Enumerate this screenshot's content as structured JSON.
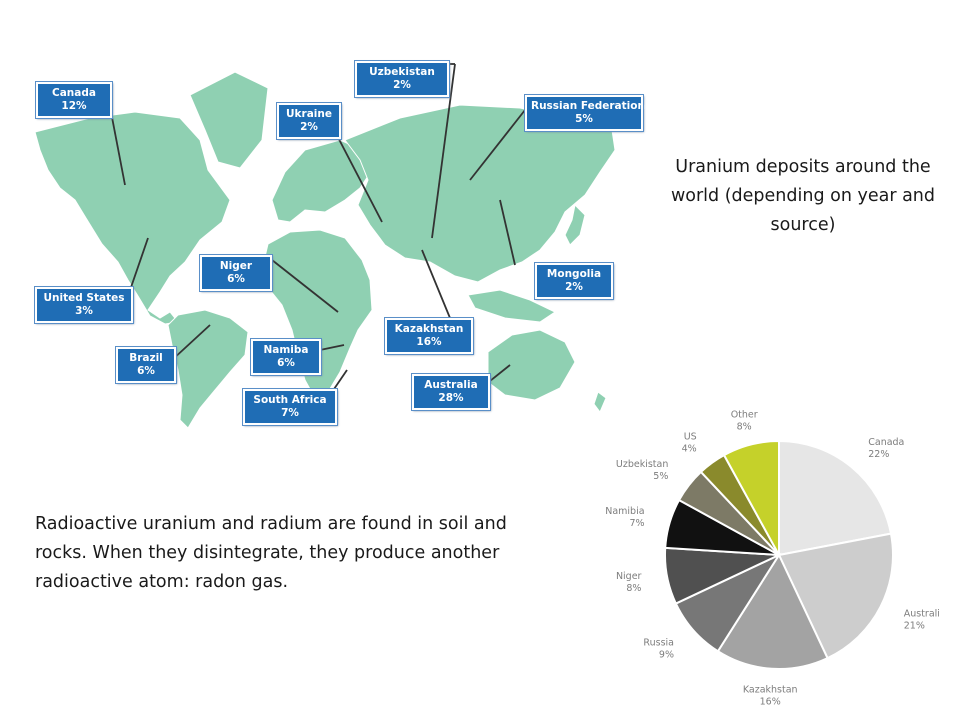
{
  "map": {
    "callouts": [
      {
        "key": "canada",
        "name": "Canada",
        "pct": "12%"
      },
      {
        "key": "united-states",
        "name": "United States",
        "pct": "3%"
      },
      {
        "key": "brazil",
        "name": "Brazil",
        "pct": "6%"
      },
      {
        "key": "ukraine",
        "name": "Ukraine",
        "pct": "2%"
      },
      {
        "key": "uzbekistan",
        "name": "Uzbekistan",
        "pct": "2%"
      },
      {
        "key": "russian-federation",
        "name": "Russian Federation",
        "pct": "5%"
      },
      {
        "key": "niger",
        "name": "Niger",
        "pct": "6%"
      },
      {
        "key": "namiba",
        "name": "Namiba",
        "pct": "6%"
      },
      {
        "key": "south-africa",
        "name": "South Africa",
        "pct": "7%"
      },
      {
        "key": "kazakhstan",
        "name": "Kazakhstan",
        "pct": "16%"
      },
      {
        "key": "mongolia",
        "name": "Mongolia",
        "pct": "2%"
      },
      {
        "key": "australia",
        "name": "Australia",
        "pct": "28%"
      }
    ],
    "colors": {
      "land": "#8fd0b2",
      "callout": "#1f6db5",
      "leader": "#333333"
    }
  },
  "caption": "Uranium deposits around the world (depending on year and source)",
  "body_text": "Radioactive uranium and radium are found in soil and rocks. When they disintegrate, they produce another radioactive atom: radon gas.",
  "chart_data": {
    "type": "pie",
    "title": "",
    "start": "12 o'clock",
    "direction": "clockwise",
    "slices": [
      {
        "label": "Canada",
        "value_label": "22%",
        "value": 22,
        "color": "#e6e6e6"
      },
      {
        "label": "Australia",
        "value_label": "21%",
        "value": 21,
        "color": "#cdcdcd"
      },
      {
        "label": "Kazakhstan",
        "value_label": "16%",
        "value": 16,
        "color": "#a3a3a3"
      },
      {
        "label": "Russia",
        "value_label": "9%",
        "value": 9,
        "color": "#777777"
      },
      {
        "label": "Niger",
        "value_label": "8%",
        "value": 8,
        "color": "#505050"
      },
      {
        "label": "Namibia",
        "value_label": "7%",
        "value": 7,
        "color": "#111111"
      },
      {
        "label": "Uzbekistan",
        "value_label": "5%",
        "value": 5,
        "color": "#7d7a66"
      },
      {
        "label": "US",
        "value_label": "4%",
        "value": 4,
        "color": "#8a8a2c"
      },
      {
        "label": "Other",
        "value_label": "8%",
        "value": 8,
        "color": "#c5d12a"
      }
    ]
  }
}
